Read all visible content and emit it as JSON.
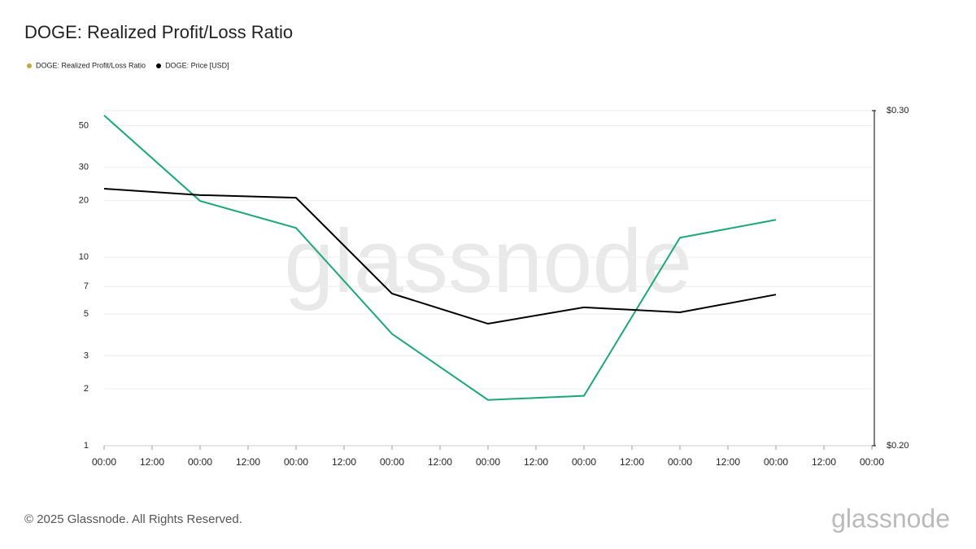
{
  "chart_data": {
    "type": "line",
    "title": "DOGE: Realized Profit/Loss Ratio",
    "x": [
      0,
      24,
      48,
      72,
      96,
      120,
      144,
      168
    ],
    "xlim": [
      0,
      192
    ],
    "xticks": [
      {
        "value": 0,
        "label": "00:00"
      },
      {
        "value": 12,
        "label": "12:00"
      },
      {
        "value": 24,
        "label": "00:00"
      },
      {
        "value": 36,
        "label": "12:00"
      },
      {
        "value": 48,
        "label": "00:00"
      },
      {
        "value": 60,
        "label": "12:00"
      },
      {
        "value": 72,
        "label": "00:00"
      },
      {
        "value": 84,
        "label": "12:00"
      },
      {
        "value": 96,
        "label": "00:00"
      },
      {
        "value": 108,
        "label": "12:00"
      },
      {
        "value": 120,
        "label": "00:00"
      },
      {
        "value": 132,
        "label": "12:00"
      },
      {
        "value": 144,
        "label": "00:00"
      },
      {
        "value": 156,
        "label": "12:00"
      },
      {
        "value": 168,
        "label": "00:00"
      },
      {
        "value": 180,
        "label": "12:00"
      },
      {
        "value": 192,
        "label": "00:00"
      }
    ],
    "ylim": [
      1,
      60
    ],
    "ylog": true,
    "yticks": [
      1,
      2,
      3,
      5,
      7,
      10,
      20,
      30,
      50
    ],
    "y2lim": [
      0.2,
      0.3
    ],
    "y2ticks": [
      {
        "value": 0.2,
        "label": "$0.20"
      },
      {
        "value": 0.3,
        "label": "$0.30"
      }
    ],
    "grid": true,
    "series": [
      {
        "name": "DOGE: Realized Profit/Loss Ratio",
        "color": "#1aa876",
        "legend_color": "#c9a43a",
        "values": [
          56.6,
          19.9,
          14.3,
          3.92,
          1.75,
          1.84,
          12.7,
          15.8
        ]
      },
      {
        "name": "DOGE: Price [USD]",
        "color": "#000000",
        "legend_color": "#000000",
        "axis": "y2",
        "values": [
          0.2767,
          0.2748,
          0.274,
          0.2454,
          0.2364,
          0.2413,
          0.2398,
          0.2451
        ]
      }
    ],
    "watermark": "glassnode",
    "footer": "© 2025 Glassnode. All Rights Reserved.",
    "logo": "glassnode"
  }
}
